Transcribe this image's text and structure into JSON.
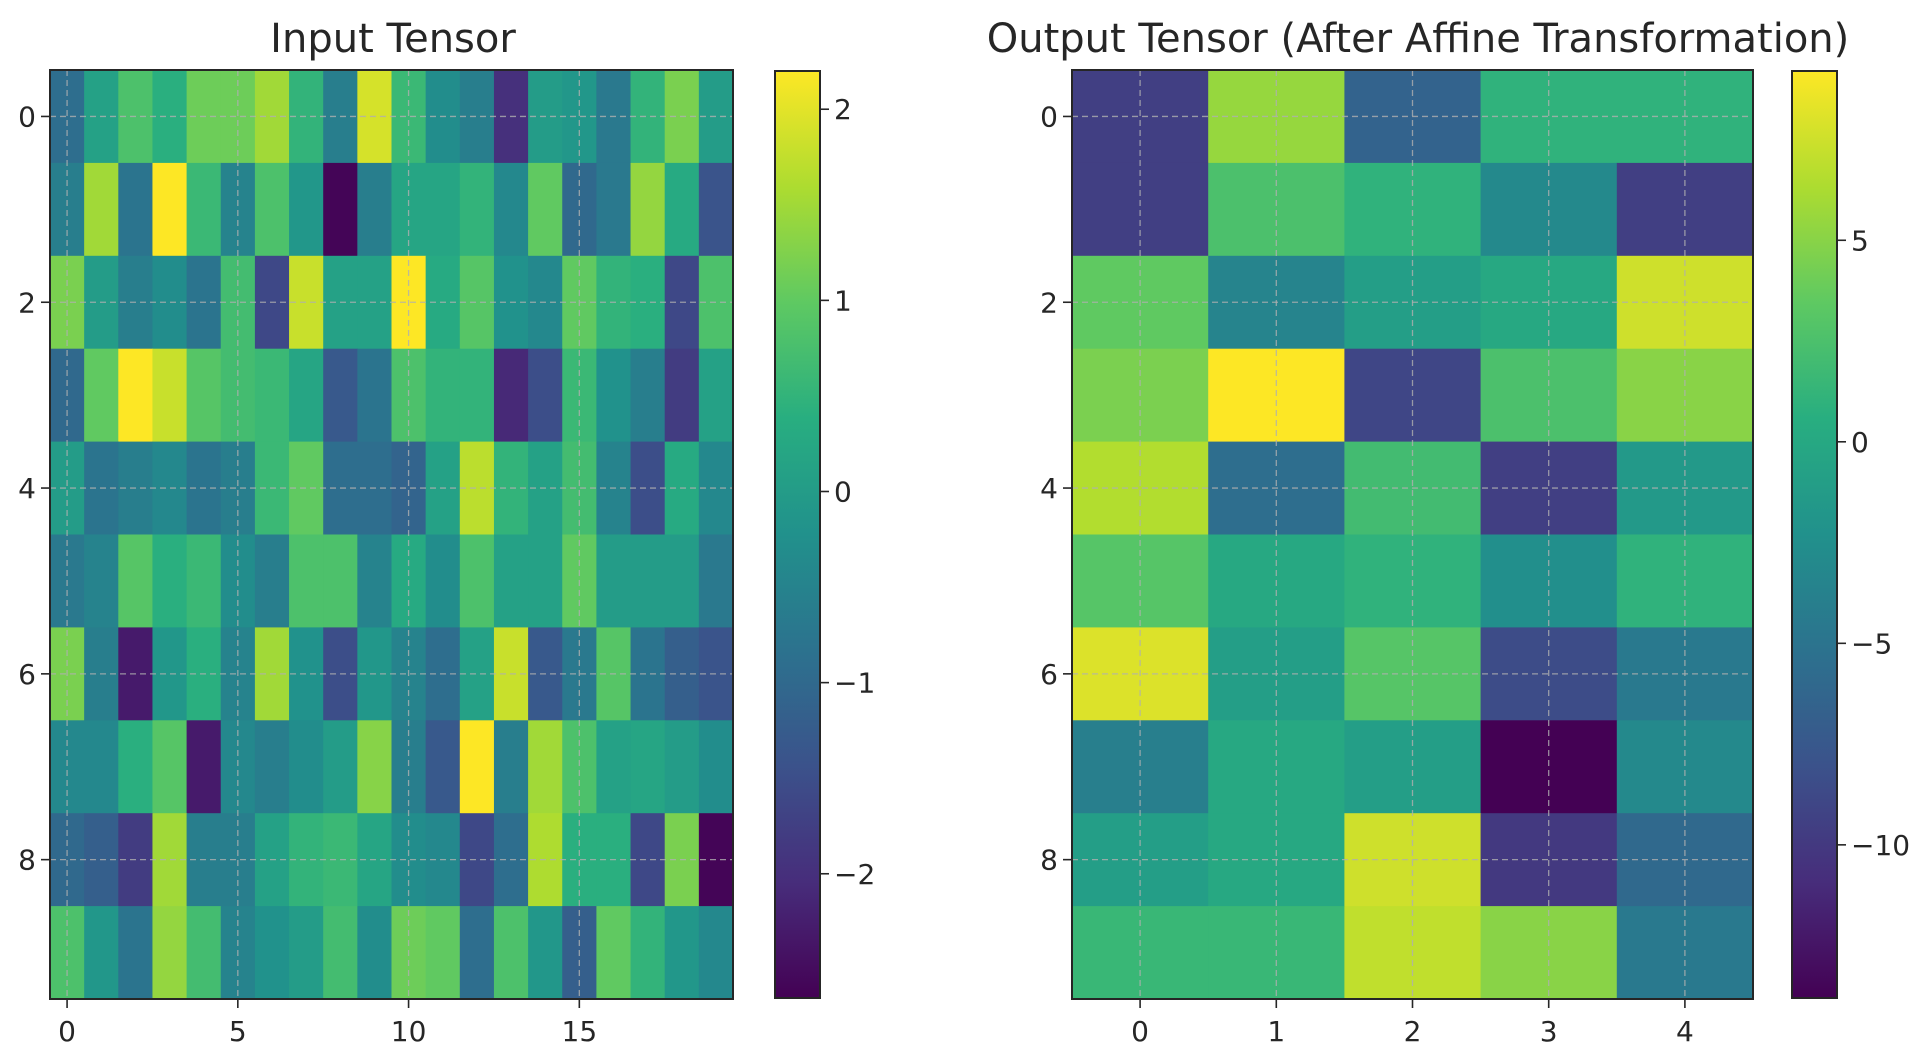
{
  "chart_data": [
    {
      "type": "heatmap",
      "title": "Input Tensor",
      "colormap": "viridis",
      "xlabel": "",
      "ylabel": "",
      "rows": 10,
      "cols": 20,
      "xticks": [
        0,
        5,
        10,
        15
      ],
      "yticks": [
        0,
        2,
        4,
        6,
        8
      ],
      "grid": true,
      "colorbar": {
        "vmin": -2.65,
        "vmax": 2.2,
        "ticks": [
          -2,
          -1,
          0,
          1,
          2
        ]
      },
      "values": [
        [
          -0.9,
          0.1,
          0.8,
          0.4,
          1.1,
          1.1,
          1.5,
          0.5,
          -0.6,
          1.9,
          0.6,
          -0.3,
          -0.6,
          -2.0,
          0.0,
          -0.1,
          -0.7,
          0.5,
          1.2,
          0.0
        ],
        [
          -0.6,
          1.5,
          -0.8,
          2.2,
          0.6,
          -0.5,
          0.8,
          -0.1,
          -2.6,
          -0.6,
          0.2,
          0.2,
          0.5,
          -0.4,
          1.0,
          -1.0,
          -0.7,
          1.4,
          0.3,
          -1.4
        ],
        [
          1.2,
          0.0,
          -0.6,
          -0.3,
          -0.8,
          0.7,
          -1.6,
          1.8,
          0.1,
          0.1,
          2.2,
          0.3,
          0.9,
          -0.2,
          -0.4,
          1.0,
          0.5,
          0.4,
          -1.6,
          0.8
        ],
        [
          -1.0,
          1.0,
          2.2,
          1.8,
          0.9,
          0.7,
          0.6,
          0.2,
          -1.3,
          -0.8,
          0.8,
          0.5,
          0.5,
          -2.1,
          -1.5,
          0.6,
          -0.2,
          -0.6,
          -1.8,
          0.1
        ],
        [
          0.0,
          -0.8,
          -0.6,
          -0.4,
          -0.8,
          -0.6,
          0.6,
          1.0,
          -0.9,
          -0.9,
          -1.1,
          0.1,
          1.7,
          0.5,
          0.1,
          0.7,
          -0.5,
          -1.5,
          0.3,
          -0.4
        ],
        [
          -0.7,
          -0.5,
          0.9,
          0.4,
          0.6,
          -0.3,
          -0.6,
          0.8,
          0.8,
          -0.5,
          0.3,
          -0.3,
          0.8,
          0.1,
          0.1,
          1.0,
          0.0,
          0.0,
          0.0,
          -0.7
        ],
        [
          1.2,
          -0.6,
          -2.3,
          -0.1,
          0.4,
          -0.5,
          1.5,
          -0.2,
          -1.5,
          -0.1,
          -0.5,
          -0.9,
          0.1,
          1.8,
          -1.3,
          -0.7,
          0.9,
          -0.8,
          -1.2,
          -1.4
        ],
        [
          -0.4,
          -0.4,
          0.4,
          0.9,
          -2.3,
          -0.4,
          -0.6,
          -0.3,
          0.0,
          1.3,
          -0.6,
          -1.3,
          2.2,
          -0.6,
          1.5,
          0.8,
          0.1,
          0.2,
          0.0,
          -0.3
        ],
        [
          -1.0,
          -1.2,
          -1.8,
          1.5,
          -0.6,
          -0.6,
          0.1,
          0.5,
          0.6,
          0.2,
          -0.3,
          -0.4,
          -1.6,
          -0.9,
          1.6,
          0.4,
          0.4,
          -1.6,
          1.2,
          -2.6
        ],
        [
          0.8,
          -0.1,
          -0.8,
          1.4,
          0.7,
          -0.5,
          -0.2,
          0.0,
          0.7,
          -0.3,
          1.1,
          1.0,
          -0.9,
          0.8,
          -0.1,
          -1.2,
          1.0,
          0.5,
          -0.1,
          -0.4
        ]
      ]
    },
    {
      "type": "heatmap",
      "title": "Output Tensor (After Affine Transformation)",
      "colormap": "viridis",
      "xlabel": "",
      "ylabel": "",
      "rows": 10,
      "cols": 5,
      "xticks": [
        0,
        1,
        2,
        3,
        4
      ],
      "yticks": [
        0,
        2,
        4,
        6,
        8
      ],
      "grid": true,
      "colorbar": {
        "vmin": -13.8,
        "vmax": 9.2,
        "ticks": [
          -10,
          -5,
          0,
          5
        ]
      },
      "values": [
        [
          -9.5,
          5.5,
          -6.5,
          1.0,
          1.0
        ],
        [
          -9.5,
          2.5,
          1.0,
          -3.0,
          -9.5
        ],
        [
          3.5,
          -3.5,
          -1.0,
          0.0,
          7.5
        ],
        [
          4.5,
          9.2,
          -9.0,
          2.5,
          5.0
        ],
        [
          6.5,
          -5.5,
          2.0,
          -9.5,
          -1.5
        ],
        [
          3.0,
          0.0,
          1.0,
          -2.5,
          1.0
        ],
        [
          8.0,
          -1.0,
          3.0,
          -8.5,
          -4.5
        ],
        [
          -4.0,
          0.0,
          -1.0,
          -13.8,
          -3.0
        ],
        [
          -1.0,
          0.0,
          7.5,
          -10.0,
          -6.0
        ],
        [
          1.5,
          1.5,
          7.0,
          5.0,
          -4.5
        ]
      ]
    }
  ]
}
